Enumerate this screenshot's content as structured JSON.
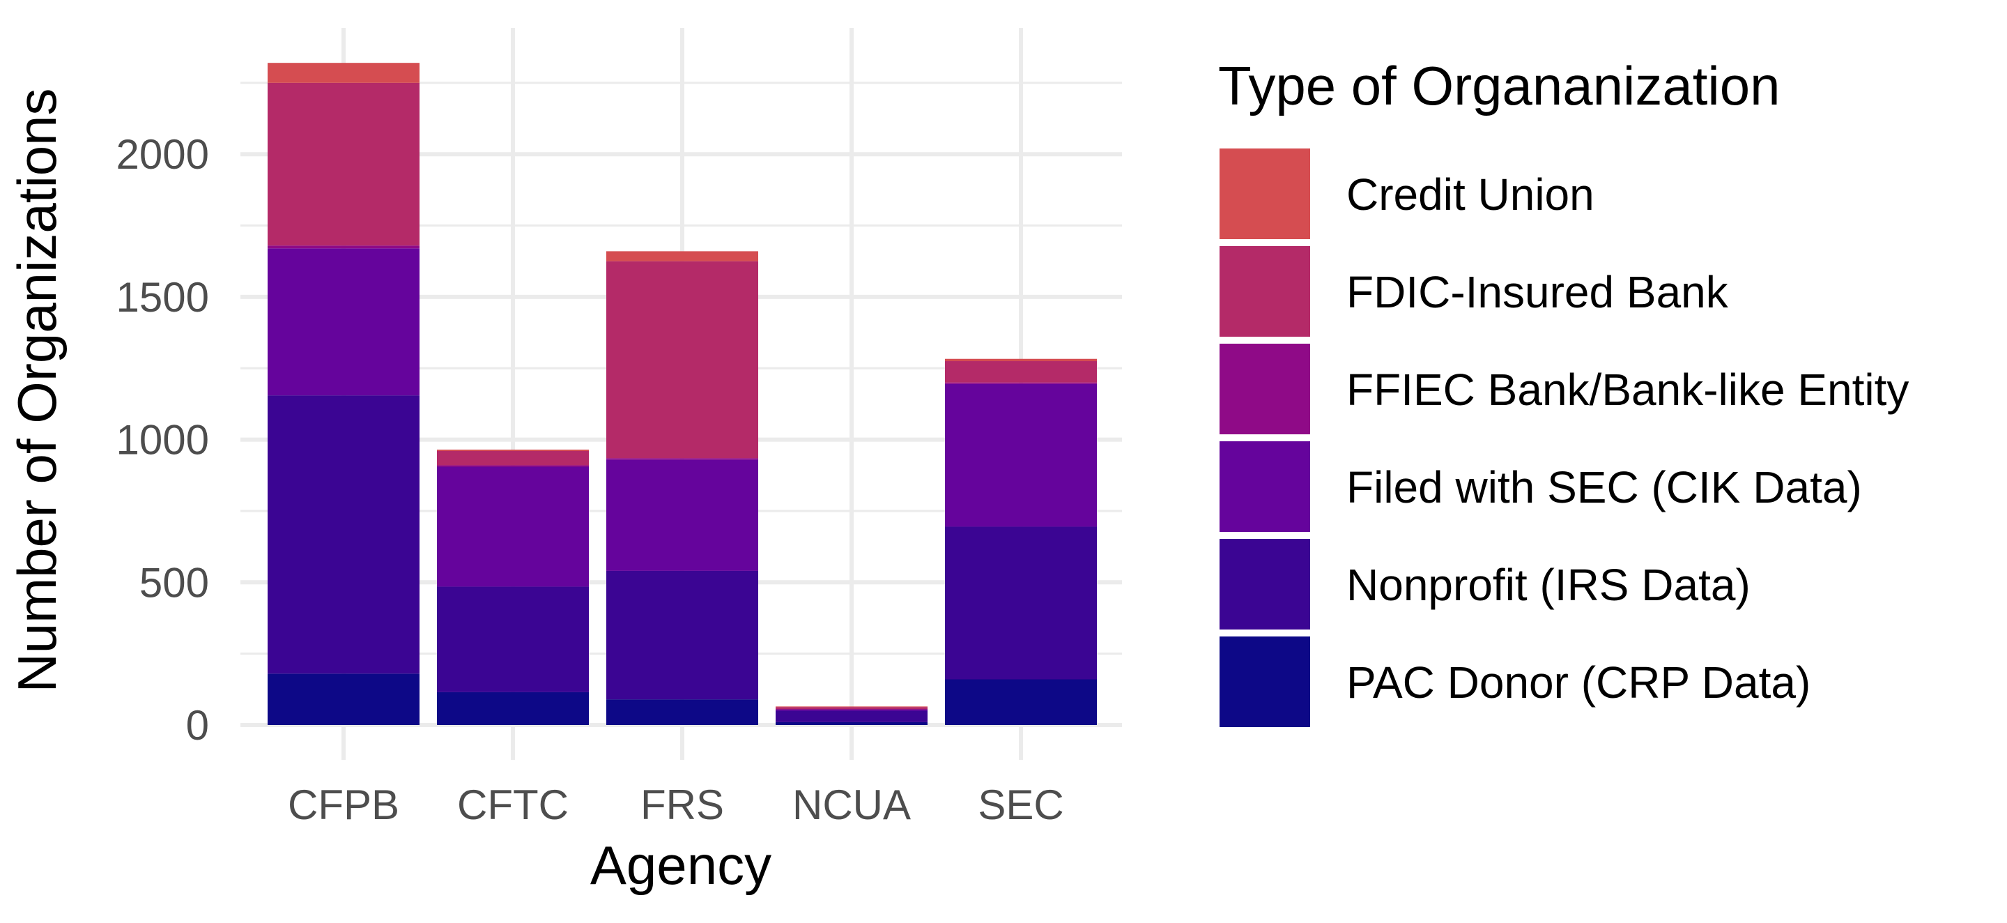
{
  "chart_data": {
    "type": "bar",
    "stacked": true,
    "categories": [
      "CFPB",
      "CFTC",
      "FRS",
      "NCUA",
      "SEC"
    ],
    "xlabel": "Agency",
    "ylabel": "Number of Organizations",
    "ylim": [
      0,
      2330
    ],
    "yticks": [
      0,
      500,
      1000,
      1500,
      2000
    ],
    "grid": true,
    "legend": {
      "title": "Type of Organanization",
      "position": "right"
    },
    "series": [
      {
        "name": "PAC Donor (CRP Data)",
        "color": "#0d0887",
        "values": [
          180,
          115,
          90,
          10,
          160
        ]
      },
      {
        "name": "Nonprofit (IRS Data)",
        "color": "#3b0593",
        "values": [
          975,
          370,
          450,
          40,
          535
        ]
      },
      {
        "name": "Filed with SEC (CIK Data)",
        "color": "#65049c",
        "values": [
          515,
          420,
          390,
          5,
          500
        ]
      },
      {
        "name": "FFIEC Bank/Bank-like Entity",
        "color": "#8f0a87",
        "values": [
          10,
          5,
          5,
          0,
          5
        ]
      },
      {
        "name": "FDIC-Insured Bank",
        "color": "#b42a68",
        "values": [
          570,
          50,
          690,
          8,
          75
        ]
      },
      {
        "name": "Credit Union",
        "color": "#d54d51",
        "values": [
          70,
          5,
          35,
          2,
          8
        ]
      }
    ],
    "legend_order": [
      "Credit Union",
      "FDIC-Insured Bank",
      "FFIEC Bank/Bank-like Entity",
      "Filed with SEC (CIK Data)",
      "Nonprofit (IRS Data)",
      "PAC Donor (CRP Data)"
    ]
  }
}
